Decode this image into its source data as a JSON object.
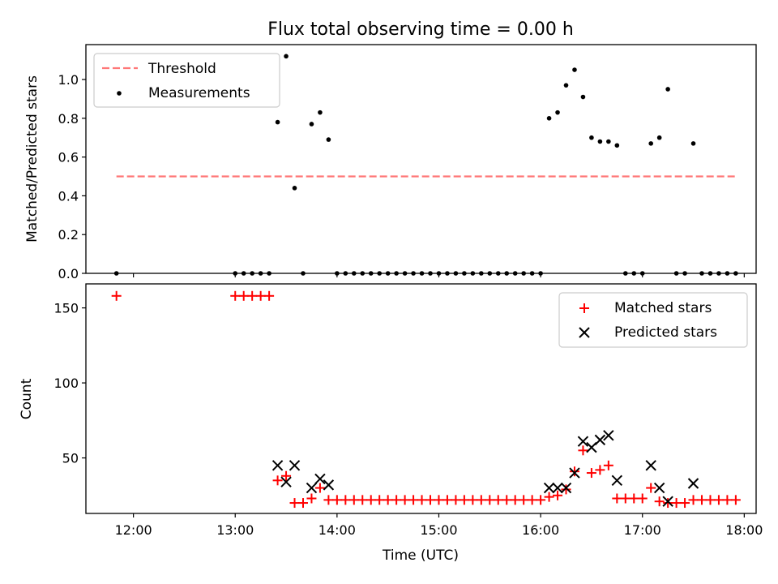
{
  "chart_data": [
    {
      "type": "scatter",
      "title": "Flux total observing time = 0.00 h",
      "xlabel": "",
      "ylabel": "Matched/Predicted stars",
      "xlim": [
        "11:32",
        "18:07"
      ],
      "ylim": [
        0,
        1.18
      ],
      "yticks": [
        "0.0",
        "0.2",
        "0.4",
        "0.6",
        "0.8",
        "1.0"
      ],
      "xticks": [
        "12:00",
        "13:00",
        "14:00",
        "15:00",
        "16:00",
        "17:00",
        "18:00"
      ],
      "legend": "upper-left",
      "threshold": {
        "name": "Threshold",
        "value": 0.5,
        "x": [
          "11:50",
          "17:55"
        ],
        "color": "#ff7777"
      },
      "series": [
        {
          "name": "Measurements",
          "color": "#000000",
          "x": [
            "11:50",
            "13:00",
            "13:05",
            "13:10",
            "13:15",
            "13:20",
            "13:25",
            "13:30",
            "13:35",
            "13:40",
            "13:45",
            "13:50",
            "13:55",
            "14:00",
            "14:05",
            "14:10",
            "14:15",
            "14:20",
            "14:25",
            "14:30",
            "14:35",
            "14:40",
            "14:45",
            "14:50",
            "14:55",
            "15:00",
            "15:05",
            "15:10",
            "15:15",
            "15:20",
            "15:25",
            "15:30",
            "15:35",
            "15:40",
            "15:45",
            "15:50",
            "15:55",
            "16:00",
            "16:05",
            "16:10",
            "16:15",
            "16:20",
            "16:25",
            "16:30",
            "16:35",
            "16:40",
            "16:45",
            "16:50",
            "16:55",
            "17:00",
            "17:05",
            "17:10",
            "17:15",
            "17:20",
            "17:25",
            "17:30",
            "17:35",
            "17:40",
            "17:45",
            "17:50",
            "17:55"
          ],
          "y": [
            0,
            0,
            0,
            0,
            0,
            0,
            0.78,
            1.12,
            0.44,
            0,
            0.77,
            0.83,
            0.69,
            0,
            0,
            0,
            0,
            0,
            0,
            0,
            0,
            0,
            0,
            0,
            0,
            0,
            0,
            0,
            0,
            0,
            0,
            0,
            0,
            0,
            0,
            0,
            0,
            0,
            0.8,
            0.83,
            0.97,
            1.05,
            0.91,
            0.7,
            0.68,
            0.68,
            0.66,
            0,
            0,
            0,
            0.67,
            0.7,
            0.95,
            0,
            0,
            0.67,
            0,
            0,
            0,
            0,
            0
          ]
        }
      ]
    },
    {
      "type": "scatter",
      "title": "",
      "xlabel": "Time (UTC)",
      "ylabel": "Count",
      "xlim": [
        "11:32",
        "18:07"
      ],
      "ylim": [
        13,
        166
      ],
      "yticks": [
        "50",
        "100",
        "150"
      ],
      "xticks": [
        "12:00",
        "13:00",
        "14:00",
        "15:00",
        "16:00",
        "17:00",
        "18:00"
      ],
      "legend": "upper-right",
      "series": [
        {
          "name": "Matched stars",
          "marker": "+",
          "color": "#ff0000",
          "x": [
            "11:50",
            "13:00",
            "13:05",
            "13:10",
            "13:15",
            "13:20",
            "13:25",
            "13:30",
            "13:35",
            "13:40",
            "13:45",
            "13:50",
            "13:55",
            "14:00",
            "14:05",
            "14:10",
            "14:15",
            "14:20",
            "14:25",
            "14:30",
            "14:35",
            "14:40",
            "14:45",
            "14:50",
            "14:55",
            "15:00",
            "15:05",
            "15:10",
            "15:15",
            "15:20",
            "15:25",
            "15:30",
            "15:35",
            "15:40",
            "15:45",
            "15:50",
            "15:55",
            "16:00",
            "16:05",
            "16:10",
            "16:15",
            "16:20",
            "16:25",
            "16:30",
            "16:35",
            "16:40",
            "16:45",
            "16:50",
            "16:55",
            "17:00",
            "17:05",
            "17:10",
            "17:15",
            "17:20",
            "17:25",
            "17:30",
            "17:35",
            "17:40",
            "17:45",
            "17:50",
            "17:55"
          ],
          "y": [
            158,
            158,
            158,
            158,
            158,
            158,
            35,
            38,
            20,
            20,
            23,
            30,
            22,
            22,
            22,
            22,
            22,
            22,
            22,
            22,
            22,
            22,
            22,
            22,
            22,
            22,
            22,
            22,
            22,
            22,
            22,
            22,
            22,
            22,
            22,
            22,
            22,
            22,
            24,
            25,
            29,
            41,
            55,
            40,
            42,
            45,
            23,
            23,
            23,
            23,
            30,
            21,
            20,
            20,
            20,
            22,
            22,
            22,
            22,
            22,
            22
          ]
        },
        {
          "name": "Predicted stars",
          "marker": "x",
          "color": "#000000",
          "x": [
            "13:25",
            "13:30",
            "13:35",
            "13:45",
            "13:50",
            "13:55",
            "16:05",
            "16:10",
            "16:15",
            "16:20",
            "16:25",
            "16:30",
            "16:35",
            "16:40",
            "16:45",
            "17:05",
            "17:10",
            "17:15",
            "17:30"
          ],
          "y": [
            45,
            34,
            45,
            30,
            36,
            32,
            30,
            30,
            30,
            40,
            61,
            57,
            62,
            65,
            35,
            45,
            30,
            21,
            33
          ]
        }
      ]
    }
  ]
}
